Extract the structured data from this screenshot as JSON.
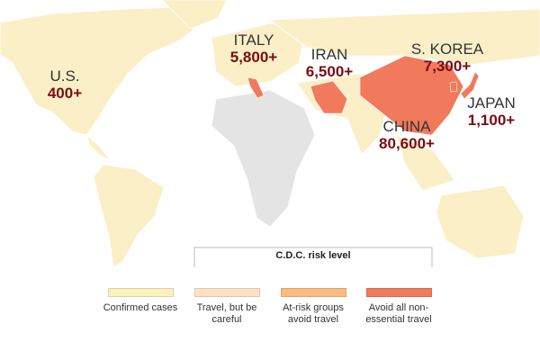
{
  "labels": [
    {
      "name": "U.S.",
      "cases": "400+"
    },
    {
      "name": "ITALY",
      "cases": "5,800+"
    },
    {
      "name": "IRAN",
      "cases": "6,500+"
    },
    {
      "name": "S. KOREA",
      "cases": "7,300+"
    },
    {
      "name": "JAPAN",
      "cases": "1,100+"
    },
    {
      "name": "CHINA",
      "cases": "80,600+"
    }
  ],
  "legend": {
    "title": "C.D.C. risk level",
    "items": [
      {
        "label": "Confirmed cases",
        "color": "#fcf0bd"
      },
      {
        "label": "Travel, but be careful",
        "color": "#fde2c4"
      },
      {
        "label": "At-risk groups avoid travel",
        "color": "#f9bb7f"
      },
      {
        "label": "Avoid all non-essential travel",
        "color": "#f17a5c"
      }
    ]
  }
}
